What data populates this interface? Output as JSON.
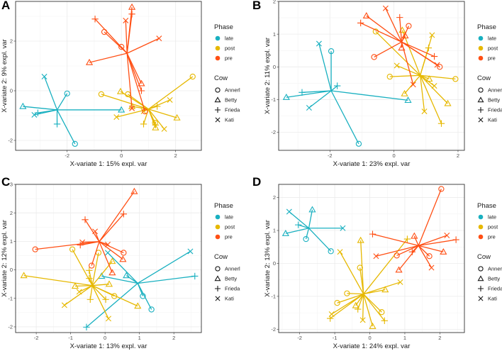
{
  "figure": {
    "legend": {
      "phase_title": "Phase",
      "cow_title": "Cow",
      "phases": [
        {
          "name": "late",
          "color": "#19B0C0"
        },
        {
          "name": "post",
          "color": "#E6B800"
        },
        {
          "name": "pre",
          "color": "#FF4F14"
        }
      ],
      "cows": [
        {
          "name": "Annerl",
          "shape": "circle"
        },
        {
          "name": "Betty",
          "shape": "triangle"
        },
        {
          "name": "Frieda",
          "shape": "plus"
        },
        {
          "name": "Kati",
          "shape": "cross"
        }
      ]
    }
  },
  "chart_data": [
    {
      "type": "scatter",
      "panel": "A",
      "title": "",
      "xlabel": "X-variate 1: 15% expl. var",
      "ylabel": "X-variate 2: 9% expl. var",
      "xlim": [
        -3.9,
        2.95
      ],
      "ylim": [
        -2.4,
        3.6
      ],
      "xticks": [
        -2,
        0,
        2
      ],
      "yticks": [
        -2,
        0,
        2
      ],
      "grid": true,
      "legend_position": "right",
      "series": [
        {
          "name": "late",
          "centroid": [
            -2.37,
            -0.77
          ],
          "points": [
            {
              "cow": "Kati",
              "x": -2.84,
              "y": 0.57
            },
            {
              "cow": "Annerl",
              "x": -2.0,
              "y": -0.11
            },
            {
              "cow": "Betty",
              "x": -3.63,
              "y": -0.63
            },
            {
              "cow": "Frieda",
              "x": -3.08,
              "y": -0.89
            },
            {
              "cow": "Kati",
              "x": -3.21,
              "y": -0.97
            },
            {
              "cow": "Frieda",
              "x": -2.37,
              "y": -1.34
            },
            {
              "cow": "Annerl",
              "x": -1.71,
              "y": -2.14
            },
            {
              "cow": "Betty",
              "x": 0.0,
              "y": -0.77
            }
          ]
        },
        {
          "name": "post",
          "centroid": [
            1.0,
            -0.74
          ],
          "points": [
            {
              "cow": "Annerl",
              "x": -0.74,
              "y": -0.14
            },
            {
              "cow": "Betty",
              "x": -0.03,
              "y": -0.03
            },
            {
              "cow": "Annerl",
              "x": 0.24,
              "y": -0.14
            },
            {
              "cow": "Annerl",
              "x": 2.63,
              "y": 0.57
            },
            {
              "cow": "Kati",
              "x": 1.79,
              "y": -0.37
            },
            {
              "cow": "Frieda",
              "x": 1.32,
              "y": -0.63
            },
            {
              "cow": "Betty",
              "x": 2.05,
              "y": -1.09
            },
            {
              "cow": "Kati",
              "x": -0.18,
              "y": -1.06
            },
            {
              "cow": "Betty",
              "x": 0.39,
              "y": -0.63
            },
            {
              "cow": "Frieda",
              "x": 0.82,
              "y": -1.34
            },
            {
              "cow": "Annerl",
              "x": 1.24,
              "y": -1.29
            },
            {
              "cow": "Betty",
              "x": 1.26,
              "y": -1.49
            },
            {
              "cow": "Kati",
              "x": 1.58,
              "y": -1.54
            },
            {
              "cow": "Frieda",
              "x": 1.26,
              "y": -1.38
            },
            {
              "cow": "Kati",
              "x": 0.82,
              "y": -0.83
            }
          ]
        },
        {
          "name": "pre",
          "centroid": [
            0.21,
            1.51
          ],
          "points": [
            {
              "cow": "Frieda",
              "x": -0.97,
              "y": 2.89
            },
            {
              "cow": "Annerl",
              "x": -0.63,
              "y": 2.37
            },
            {
              "cow": "Annerl",
              "x": 0.0,
              "y": 1.77
            },
            {
              "cow": "Kati",
              "x": 0.16,
              "y": 2.83
            },
            {
              "cow": "Betty",
              "x": 0.39,
              "y": 3.37
            },
            {
              "cow": "Frieda",
              "x": 0.39,
              "y": 3.09
            },
            {
              "cow": "Kati",
              "x": 1.39,
              "y": 2.11
            },
            {
              "cow": "Betty",
              "x": -1.18,
              "y": 1.14
            },
            {
              "cow": "Betty",
              "x": 0.74,
              "y": 0.29
            },
            {
              "cow": "Frieda",
              "x": 0.74,
              "y": 0.0
            },
            {
              "cow": "Kati",
              "x": 0.39,
              "y": -0.71
            },
            {
              "cow": "Annerl",
              "x": 0.87,
              "y": -0.83
            }
          ]
        }
      ]
    },
    {
      "type": "scatter",
      "panel": "B",
      "title": "",
      "xlabel": "X-variate 1: 23% expl. var",
      "ylabel": "X-variate 2: 11% expl. var",
      "xlim": [
        -3.6,
        2.2
      ],
      "ylim": [
        -2.55,
        2.0
      ],
      "xticks": [
        -2,
        0,
        2
      ],
      "yticks": [
        -2,
        -1,
        0,
        1,
        2
      ],
      "grid": true,
      "legend_position": "right",
      "series": [
        {
          "name": "late",
          "centroid": [
            -1.96,
            -0.73
          ],
          "points": [
            {
              "cow": "Kati",
              "x": -2.34,
              "y": 0.71
            },
            {
              "cow": "Annerl",
              "x": -1.96,
              "y": 0.48
            },
            {
              "cow": "Frieda",
              "x": -1.77,
              "y": -0.58
            },
            {
              "cow": "Frieda",
              "x": -2.87,
              "y": -0.78
            },
            {
              "cow": "Betty",
              "x": -3.36,
              "y": -0.93
            },
            {
              "cow": "Kati",
              "x": -2.65,
              "y": -1.25
            },
            {
              "cow": "Annerl",
              "x": -1.1,
              "y": -2.35
            },
            {
              "cow": "Betty",
              "x": 0.44,
              "y": -1.02
            }
          ]
        },
        {
          "name": "post",
          "centroid": [
            0.82,
            -0.26
          ],
          "points": [
            {
              "cow": "Annerl",
              "x": -0.57,
              "y": 1.08
            },
            {
              "cow": "Betty",
              "x": 0.26,
              "y": 1.12
            },
            {
              "cow": "Kati",
              "x": 1.19,
              "y": 0.97
            },
            {
              "cow": "Frieda",
              "x": 1.08,
              "y": 0.58
            },
            {
              "cow": "Kati",
              "x": 0.09,
              "y": 0.04
            },
            {
              "cow": "Annerl",
              "x": -0.13,
              "y": -0.3
            },
            {
              "cow": "Annerl",
              "x": 1.92,
              "y": -0.37
            },
            {
              "cow": "Betty",
              "x": 1.1,
              "y": -0.37
            },
            {
              "cow": "Kati",
              "x": 1.26,
              "y": -0.58
            },
            {
              "cow": "Betty",
              "x": 0.33,
              "y": -0.82
            },
            {
              "cow": "Betty",
              "x": 1.68,
              "y": -1.12
            },
            {
              "cow": "Kati",
              "x": 0.95,
              "y": -1.36
            },
            {
              "cow": "Frieda",
              "x": 1.48,
              "y": -1.73
            }
          ]
        },
        {
          "name": "pre",
          "centroid": [
            0.24,
            0.76
          ],
          "points": [
            {
              "cow": "Kati",
              "x": -0.26,
              "y": 1.79
            },
            {
              "cow": "Betty",
              "x": -0.86,
              "y": 1.56
            },
            {
              "cow": "Frieda",
              "x": -1.04,
              "y": 1.34
            },
            {
              "cow": "Frieda",
              "x": 0.18,
              "y": 1.51
            },
            {
              "cow": "Annerl",
              "x": 0.46,
              "y": 1.25
            },
            {
              "cow": "Betty",
              "x": 0.35,
              "y": 0.95
            },
            {
              "cow": "Betty",
              "x": 0.24,
              "y": 0.58
            },
            {
              "cow": "Annerl",
              "x": -0.62,
              "y": 0.3
            },
            {
              "cow": "Frieda",
              "x": 1.26,
              "y": 0.32
            },
            {
              "cow": "Kati",
              "x": 1.35,
              "y": 0.06
            },
            {
              "cow": "Annerl",
              "x": 1.43,
              "y": 0.0
            },
            {
              "cow": "Kati",
              "x": 0.6,
              "y": -0.54
            }
          ]
        }
      ]
    },
    {
      "type": "scatter",
      "panel": "C",
      "title": "",
      "xlabel": "X-variate 1: 13% expl. var",
      "ylabel": "X-variate 2: 12% expl. var",
      "xlim": [
        -2.6,
        2.8
      ],
      "ylim": [
        -2.2,
        3.0
      ],
      "xticks": [
        -2,
        -1,
        0,
        1,
        2
      ],
      "yticks": [
        -2,
        -1,
        0,
        1,
        2,
        3
      ],
      "grid": true,
      "legend_position": "right",
      "series": [
        {
          "name": "late",
          "centroid": [
            0.95,
            -0.47
          ],
          "points": [
            {
              "cow": "Kati",
              "x": 2.48,
              "y": 0.65
            },
            {
              "cow": "Frieda",
              "x": 2.61,
              "y": -0.22
            },
            {
              "cow": "Kati",
              "x": 0.08,
              "y": 0.6
            },
            {
              "cow": "Betty",
              "x": -0.1,
              "y": -0.22
            },
            {
              "cow": "Betty",
              "x": 0.62,
              "y": -0.2
            },
            {
              "cow": "Annerl",
              "x": 1.1,
              "y": -0.92
            },
            {
              "cow": "Annerl",
              "x": 1.35,
              "y": -1.39
            },
            {
              "cow": "Frieda",
              "x": -0.54,
              "y": -2.01
            }
          ]
        },
        {
          "name": "post",
          "centroid": [
            -0.37,
            -0.55
          ],
          "points": [
            {
              "cow": "Annerl",
              "x": -0.95,
              "y": 0.72
            },
            {
              "cow": "Annerl",
              "x": -0.19,
              "y": 0.6
            },
            {
              "cow": "Betty",
              "x": 0.21,
              "y": 0.3
            },
            {
              "cow": "Frieda",
              "x": -0.46,
              "y": -0.02
            },
            {
              "cow": "Frieda",
              "x": -0.46,
              "y": -0.3
            },
            {
              "cow": "Betty",
              "x": -2.36,
              "y": -0.2
            },
            {
              "cow": "Betty",
              "x": -0.87,
              "y": -0.57
            },
            {
              "cow": "Betty",
              "x": 0.12,
              "y": -0.5
            },
            {
              "cow": "Kati",
              "x": -0.75,
              "y": -0.77
            },
            {
              "cow": "Frieda",
              "x": -0.43,
              "y": -1.04
            },
            {
              "cow": "Annerl",
              "x": 0.27,
              "y": -0.92
            },
            {
              "cow": "Frieda",
              "x": 0.02,
              "y": -1.04
            },
            {
              "cow": "Kati",
              "x": -1.18,
              "y": -1.24
            },
            {
              "cow": "Betty",
              "x": 0.95,
              "y": -1.27
            },
            {
              "cow": "Kati",
              "x": 0.1,
              "y": -1.71
            }
          ]
        },
        {
          "name": "pre",
          "centroid": [
            -0.17,
            0.99
          ],
          "points": [
            {
              "cow": "Betty",
              "x": 0.85,
              "y": 2.75
            },
            {
              "cow": "Frieda",
              "x": 0.54,
              "y": 1.96
            },
            {
              "cow": "Frieda",
              "x": -0.58,
              "y": 1.76
            },
            {
              "cow": "Kati",
              "x": -0.29,
              "y": 1.35
            },
            {
              "cow": "Kati",
              "x": -0.66,
              "y": 0.97
            },
            {
              "cow": "Frieda",
              "x": -0.72,
              "y": 0.87
            },
            {
              "cow": "Annerl",
              "x": -2.03,
              "y": 0.72
            },
            {
              "cow": "Kati",
              "x": 0.08,
              "y": 0.89
            },
            {
              "cow": "Annerl",
              "x": 0.54,
              "y": 0.6
            },
            {
              "cow": "Betty",
              "x": 0.52,
              "y": 0.37
            },
            {
              "cow": "Annerl",
              "x": -0.39,
              "y": 0.15
            },
            {
              "cow": "Betty",
              "x": 0.21,
              "y": -0.1
            }
          ]
        }
      ]
    },
    {
      "type": "scatter",
      "panel": "D",
      "title": "",
      "xlabel": "X-variate 1: 24% expl. var",
      "ylabel": "X-variate 2: 13% expl. var",
      "xlim": [
        -2.6,
        2.7
      ],
      "ylim": [
        -2.1,
        2.4
      ],
      "xticks": [
        -2,
        -1,
        0,
        1,
        2
      ],
      "yticks": [
        -2,
        -1,
        0,
        1,
        2
      ],
      "grid": true,
      "legend_position": "right",
      "series": [
        {
          "name": "late",
          "centroid": [
            -1.74,
            1.07
          ],
          "points": [
            {
              "cow": "Kati",
              "x": -2.3,
              "y": 1.57
            },
            {
              "cow": "Betty",
              "x": -1.64,
              "y": 1.63
            },
            {
              "cow": "Frieda",
              "x": -2.04,
              "y": 1.17
            },
            {
              "cow": "Betty",
              "x": -2.4,
              "y": 0.91
            },
            {
              "cow": "Annerl",
              "x": -1.82,
              "y": 0.74
            },
            {
              "cow": "Kati",
              "x": -0.77,
              "y": 1.07
            },
            {
              "cow": "Annerl",
              "x": -1.11,
              "y": 0.37
            }
          ]
        },
        {
          "name": "post",
          "centroid": [
            -0.18,
            -0.93
          ],
          "points": [
            {
              "cow": "Betty",
              "x": -0.26,
              "y": 0.7
            },
            {
              "cow": "Frieda",
              "x": 1.07,
              "y": 0.74
            },
            {
              "cow": "Kati",
              "x": -0.85,
              "y": 0.35
            },
            {
              "cow": "Annerl",
              "x": -0.28,
              "y": -0.13
            },
            {
              "cow": "Kati",
              "x": 0.87,
              "y": -0.57
            },
            {
              "cow": "Betty",
              "x": 0.44,
              "y": -0.8
            },
            {
              "cow": "Annerl",
              "x": -0.65,
              "y": -0.91
            },
            {
              "cow": "Annerl",
              "x": -0.93,
              "y": -1.2
            },
            {
              "cow": "Betty",
              "x": -0.4,
              "y": -1.28
            },
            {
              "cow": "Frieda",
              "x": -0.34,
              "y": -1.39
            },
            {
              "cow": "Kati",
              "x": -1.09,
              "y": -1.54
            },
            {
              "cow": "Frieda",
              "x": -1.13,
              "y": -1.67
            },
            {
              "cow": "Annerl",
              "x": 0.34,
              "y": -1.48
            },
            {
              "cow": "Kati",
              "x": -0.2,
              "y": -1.72
            },
            {
              "cow": "Frieda",
              "x": 0.42,
              "y": -1.74
            },
            {
              "cow": "Betty",
              "x": 0.08,
              "y": -1.91
            }
          ]
        },
        {
          "name": "pre",
          "centroid": [
            1.39,
            0.54
          ],
          "points": [
            {
              "cow": "Annerl",
              "x": 2.04,
              "y": 2.26
            },
            {
              "cow": "Kati",
              "x": 2.2,
              "y": 0.85
            },
            {
              "cow": "Frieda",
              "x": 2.46,
              "y": 0.72
            },
            {
              "cow": "Betty",
              "x": 2.1,
              "y": 0.35
            },
            {
              "cow": "Betty",
              "x": 1.27,
              "y": 0.83
            },
            {
              "cow": "Frieda",
              "x": 0.08,
              "y": 0.89
            },
            {
              "cow": "Kati",
              "x": 0.18,
              "y": 0.22
            },
            {
              "cow": "Annerl",
              "x": 0.77,
              "y": 0.24
            },
            {
              "cow": "Frieda",
              "x": 1.21,
              "y": 0.35
            },
            {
              "cow": "Annerl",
              "x": 1.7,
              "y": 0.22
            },
            {
              "cow": "Kati",
              "x": 1.76,
              "y": -0.13
            },
            {
              "cow": "Betty",
              "x": 0.83,
              "y": -0.2
            }
          ]
        }
      ]
    }
  ]
}
